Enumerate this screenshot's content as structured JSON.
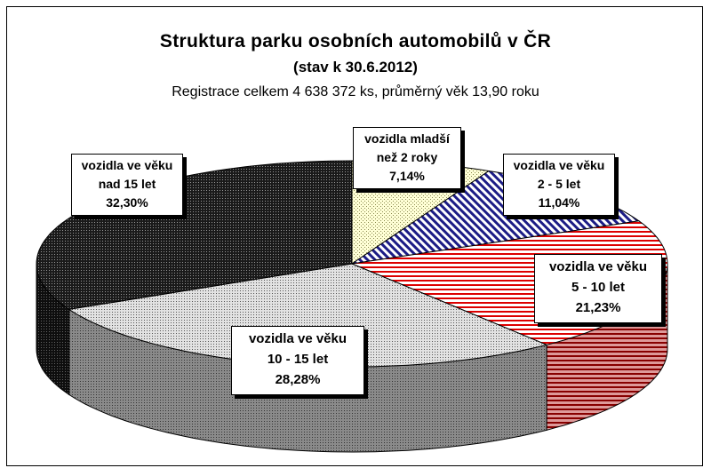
{
  "chart_data": {
    "type": "pie",
    "title": "Struktura parku osobních automobilů v ČR",
    "subtitle": "(stav k 30.6.2012)",
    "subtitle2": "Registrace celkem 4 638 372 ks, průměrný věk 13,90 roku",
    "slices": [
      {
        "line1": "vozidla mladší",
        "line2": "než 2 roky",
        "pct": "7,14%",
        "value": 7.14,
        "color": "#fffbcc",
        "pattern": "dots-light"
      },
      {
        "line1": "vozidla ve věku",
        "line2": "2 - 5 let",
        "pct": "11,04%",
        "value": 11.04,
        "color": "#1a1a80",
        "pattern": "diag-blue"
      },
      {
        "line1": "vozidla ve věku",
        "line2": "5 - 10 let",
        "pct": "21,23%",
        "value": 21.23,
        "color": "#cc0000",
        "pattern": "horiz-red"
      },
      {
        "line1": "vozidla ve věku",
        "line2": "10 - 15 let",
        "pct": "28,28%",
        "value": 28.28,
        "color": "#bbbbbb",
        "pattern": "dots-grey"
      },
      {
        "line1": "vozidla ve věku",
        "line2": "nad 15 let",
        "pct": "32,30%",
        "value": 32.3,
        "color": "#333333",
        "pattern": "dots-dark"
      }
    ]
  }
}
